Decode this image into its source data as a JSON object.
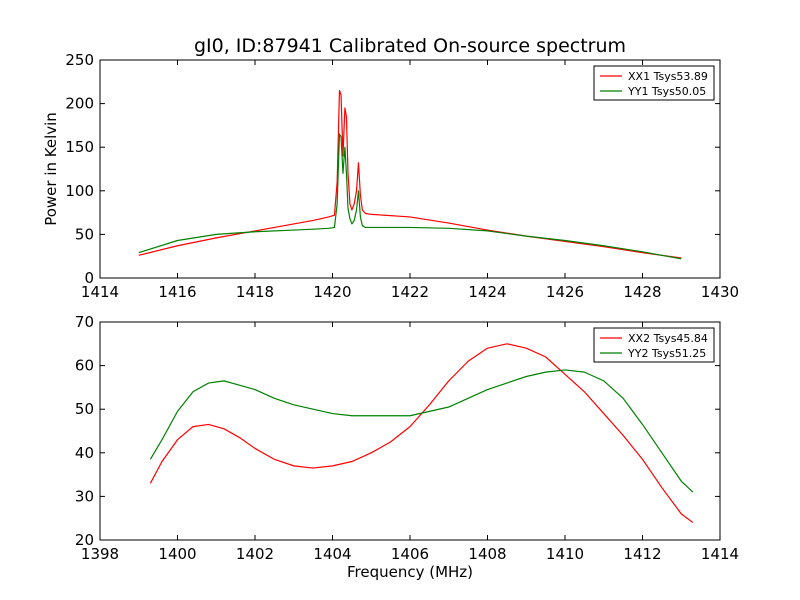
{
  "figure": {
    "title": "gI0, ID:87941 Calibrated On-source spectrum",
    "ylabel": "Power in Kelvin",
    "xlabel": "Frequency (MHz)"
  },
  "chart_data": [
    {
      "type": "line",
      "title": "gI0, ID:87941 Calibrated On-source spectrum",
      "xlabel": "",
      "ylabel": "Power in Kelvin",
      "xlim": [
        1414,
        1430
      ],
      "ylim": [
        0,
        250
      ],
      "xticks": [
        1414,
        1416,
        1418,
        1420,
        1422,
        1424,
        1426,
        1428,
        1430
      ],
      "yticks": [
        0,
        50,
        100,
        150,
        200,
        250
      ],
      "grid": false,
      "legend_position": "top-right",
      "series": [
        {
          "name": "XX1 Tsys53.89",
          "color": "#ff0000",
          "x": [
            1415.0,
            1416.0,
            1417.0,
            1418.0,
            1419.0,
            1419.5,
            1419.9,
            1420.05,
            1420.12,
            1420.18,
            1420.22,
            1420.27,
            1420.32,
            1420.36,
            1420.4,
            1420.45,
            1420.5,
            1420.56,
            1420.62,
            1420.67,
            1420.72,
            1420.77,
            1420.85,
            1421.0,
            1422.0,
            1423.0,
            1424.0,
            1425.0,
            1426.0,
            1427.0,
            1428.0,
            1429.0
          ],
          "y": [
            26,
            37,
            46,
            54,
            62,
            66,
            70,
            72,
            110,
            215,
            210,
            140,
            195,
            185,
            120,
            85,
            78,
            85,
            100,
            132,
            95,
            78,
            74,
            73,
            70,
            63,
            55,
            48,
            42,
            36,
            29,
            23
          ]
        },
        {
          "name": "YY1 Tsys50.05",
          "color": "#008000",
          "x": [
            1415.0,
            1416.0,
            1417.0,
            1418.0,
            1419.0,
            1419.5,
            1419.9,
            1420.05,
            1420.12,
            1420.18,
            1420.22,
            1420.27,
            1420.32,
            1420.36,
            1420.4,
            1420.45,
            1420.5,
            1420.56,
            1420.62,
            1420.67,
            1420.72,
            1420.77,
            1420.85,
            1421.0,
            1422.0,
            1423.0,
            1424.0,
            1425.0,
            1426.0,
            1427.0,
            1428.0,
            1429.0
          ],
          "y": [
            29,
            43,
            50,
            53,
            55,
            56,
            57,
            58,
            85,
            165,
            162,
            120,
            150,
            120,
            80,
            68,
            62,
            66,
            78,
            100,
            70,
            60,
            58,
            58,
            58,
            57,
            54,
            48,
            43,
            37,
            30,
            22
          ]
        }
      ]
    },
    {
      "type": "line",
      "title": "",
      "xlabel": "Frequency (MHz)",
      "ylabel": "",
      "xlim": [
        1398,
        1414
      ],
      "ylim": [
        20,
        70
      ],
      "xticks": [
        1398,
        1400,
        1402,
        1404,
        1406,
        1408,
        1410,
        1412,
        1414
      ],
      "yticks": [
        20,
        30,
        40,
        50,
        60,
        70
      ],
      "grid": false,
      "legend_position": "top-right",
      "series": [
        {
          "name": "XX2 Tsys45.84",
          "color": "#ff0000",
          "x": [
            1399.3,
            1399.6,
            1400.0,
            1400.4,
            1400.8,
            1401.2,
            1401.6,
            1402.0,
            1402.5,
            1403.0,
            1403.5,
            1404.0,
            1404.5,
            1405.0,
            1405.5,
            1406.0,
            1406.5,
            1407.0,
            1407.5,
            1408.0,
            1408.5,
            1409.0,
            1409.5,
            1410.0,
            1410.5,
            1411.0,
            1411.5,
            1412.0,
            1412.5,
            1413.0,
            1413.3
          ],
          "y": [
            33,
            38,
            43,
            46,
            46.5,
            45.5,
            43.5,
            41,
            38.5,
            37,
            36.5,
            37,
            38,
            40,
            42.5,
            46,
            51,
            56.5,
            61,
            64,
            65,
            64,
            62,
            58,
            54,
            49,
            44,
            38.5,
            32,
            26,
            24
          ]
        },
        {
          "name": "YY2 Tsys51.25",
          "color": "#008000",
          "x": [
            1399.3,
            1399.6,
            1400.0,
            1400.4,
            1400.8,
            1401.2,
            1401.6,
            1402.0,
            1402.5,
            1403.0,
            1403.5,
            1404.0,
            1404.5,
            1405.0,
            1405.5,
            1406.0,
            1406.5,
            1407.0,
            1407.5,
            1408.0,
            1408.5,
            1409.0,
            1409.5,
            1410.0,
            1410.5,
            1411.0,
            1411.5,
            1412.0,
            1412.5,
            1413.0,
            1413.3
          ],
          "y": [
            38.5,
            43,
            49.5,
            54,
            56,
            56.5,
            55.5,
            54.5,
            52.5,
            51,
            50,
            49,
            48.5,
            48.5,
            48.5,
            48.5,
            49.5,
            50.5,
            52.5,
            54.5,
            56,
            57.5,
            58.5,
            59,
            58.5,
            56.5,
            52.5,
            46.5,
            40,
            33.5,
            31
          ]
        }
      ]
    }
  ]
}
